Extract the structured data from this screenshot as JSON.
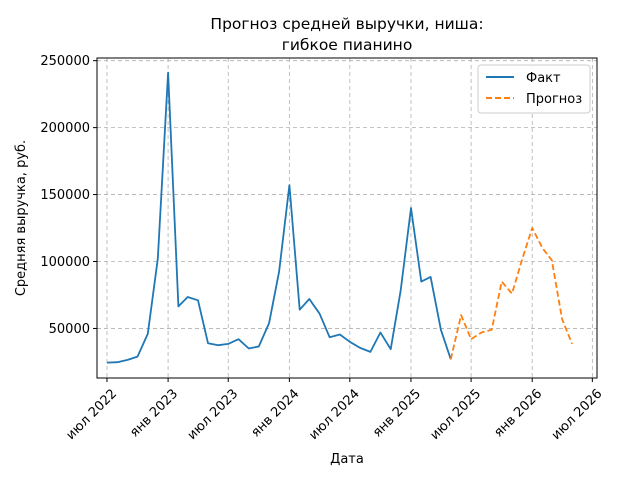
{
  "chart_data": {
    "type": "line",
    "title": "Прогноз средней выручки, ниша:\nгибкое пианино",
    "title_lines": [
      "Прогноз средней выручки, ниша:",
      "гибкое пианино"
    ],
    "xlabel": "Дата",
    "ylabel": "Средняя выручка, руб.",
    "xlim": [
      "2022-06-01",
      "2026-07-15"
    ],
    "ylim": [
      13000,
      252000
    ],
    "yticks": [
      50000,
      100000,
      150000,
      200000,
      250000
    ],
    "xticks": [
      {
        "date": "2022-07-01",
        "label": "июл 2022"
      },
      {
        "date": "2023-01-01",
        "label": "янв 2023"
      },
      {
        "date": "2023-07-01",
        "label": "июл 2023"
      },
      {
        "date": "2024-01-01",
        "label": "янв 2024"
      },
      {
        "date": "2024-07-01",
        "label": "июл 2024"
      },
      {
        "date": "2025-01-01",
        "label": "янв 2025"
      },
      {
        "date": "2025-07-01",
        "label": "июл 2025"
      },
      {
        "date": "2026-01-01",
        "label": "янв 2026"
      },
      {
        "date": "2026-07-01",
        "label": "июл 2026"
      }
    ],
    "grid": true,
    "legend_position": "top-right",
    "series": [
      {
        "name": "Факт",
        "color": "#1f77b4",
        "dash": "solid",
        "x": [
          "2022-07-01",
          "2022-08-01",
          "2022-09-01",
          "2022-10-01",
          "2022-11-01",
          "2022-12-01",
          "2023-01-01",
          "2023-02-01",
          "2023-03-01",
          "2023-04-01",
          "2023-05-01",
          "2023-06-01",
          "2023-07-01",
          "2023-08-01",
          "2023-09-01",
          "2023-10-01",
          "2023-11-01",
          "2023-12-01",
          "2024-01-01",
          "2024-02-01",
          "2024-03-01",
          "2024-04-01",
          "2024-05-01",
          "2024-06-01",
          "2024-07-01",
          "2024-08-01",
          "2024-09-01",
          "2024-10-01",
          "2024-11-01",
          "2024-12-01",
          "2025-01-01",
          "2025-02-01",
          "2025-03-01",
          "2025-04-01",
          "2025-05-01"
        ],
        "values": [
          24500,
          24800,
          26500,
          29000,
          46000,
          102000,
          241000,
          66500,
          73500,
          71000,
          39000,
          37500,
          38500,
          42000,
          35000,
          36500,
          54000,
          92500,
          157000,
          64000,
          72000,
          61000,
          43500,
          45500,
          40000,
          35500,
          32500,
          47000,
          34500,
          78500,
          140000,
          85000,
          88500,
          49000,
          27000
        ]
      },
      {
        "name": "Прогноз",
        "color": "#ff7f0e",
        "dash": "dashed",
        "x": [
          "2025-05-01",
          "2025-06-01",
          "2025-07-01",
          "2025-08-01",
          "2025-09-01",
          "2025-10-01",
          "2025-11-01",
          "2025-12-01",
          "2026-01-01",
          "2026-02-01",
          "2026-03-01",
          "2026-04-01",
          "2026-05-01"
        ],
        "values": [
          27000,
          60000,
          42000,
          47000,
          49000,
          85000,
          76000,
          101000,
          125000,
          110000,
          101000,
          57000,
          38500
        ]
      }
    ]
  }
}
